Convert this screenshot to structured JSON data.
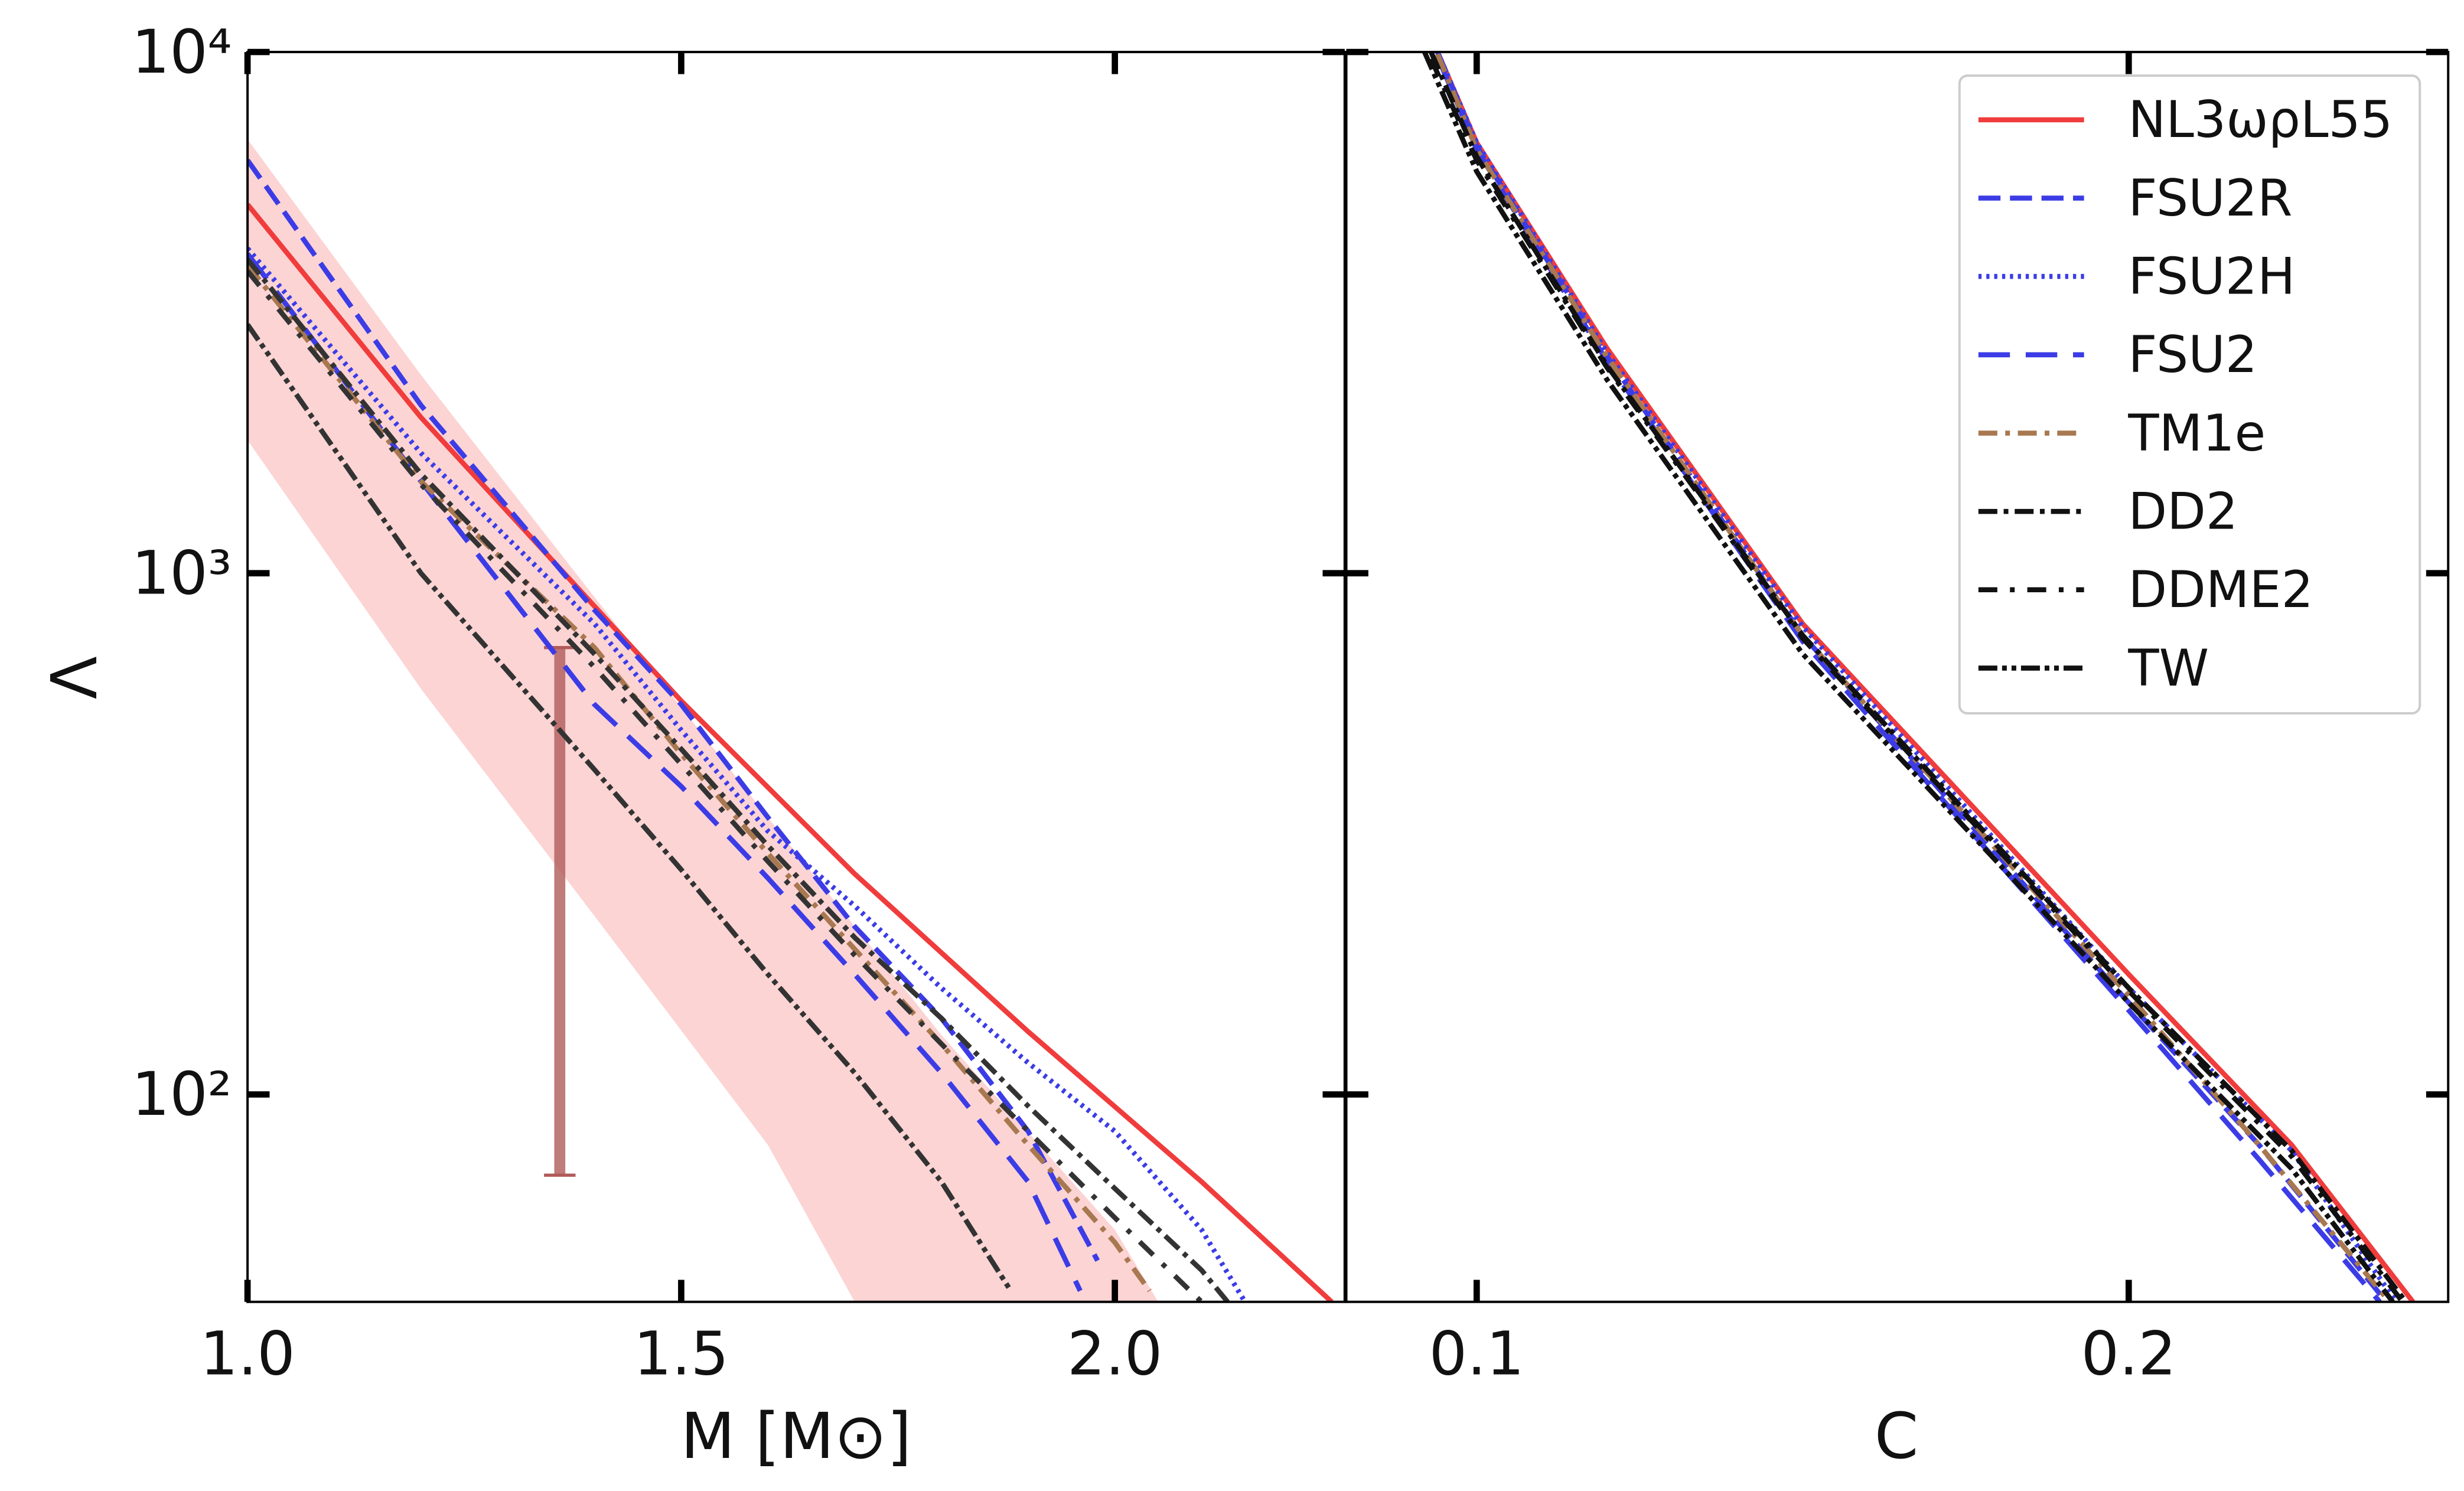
{
  "chart_data": [
    {
      "type": "line",
      "xlabel": "M [M⊙]",
      "ylabel": "Λ",
      "log_y": true,
      "xlim": [
        1.0,
        2.265
      ],
      "ylim": [
        40,
        10000
      ],
      "xticks": [
        {
          "value": 1.0,
          "label": "1.0"
        },
        1.5,
        {
          "value": 2.0,
          "label": "2.0"
        }
      ],
      "yticks": [
        {
          "value": 100,
          "label": "10²"
        },
        {
          "value": 1000,
          "label": "10³"
        },
        {
          "value": 10000,
          "label": "10⁴"
        }
      ],
      "band": {
        "color": "#fcd4d4",
        "upper": {
          "x": [
            1.0,
            1.2,
            1.4,
            1.6,
            1.8,
            2.0,
            2.05
          ],
          "values": [
            6800,
            2400,
            900,
            340,
            130,
            55,
            40
          ]
        },
        "lower": {
          "x": [
            1.0,
            1.2,
            1.4,
            1.6,
            1.7
          ],
          "values": [
            1800,
            600,
            220,
            80,
            40
          ]
        }
      },
      "errorbar": {
        "x": 1.36,
        "low": 70,
        "high": 720,
        "color": "#b05a5a"
      },
      "series": [
        {
          "color": "#f03c3c",
          "dash": "none",
          "x": [
            1.0,
            1.2,
            1.35,
            1.5,
            1.7,
            1.9,
            2.1,
            2.25
          ],
          "values": [
            5100,
            1990,
            1065,
            569,
            265,
            132,
            68,
            40
          ]
        },
        {
          "color": "#3c3ce6",
          "dash": "14,6",
          "x": [
            1.0,
            1.2,
            1.4,
            1.5,
            1.6,
            1.7,
            1.8,
            1.9,
            1.98
          ],
          "values": [
            6200,
            2100,
            850,
            560,
            340,
            210,
            140,
            85,
            48
          ]
        },
        {
          "color": "#3c3ce6",
          "dash": "2,3",
          "x": [
            1.0,
            1.2,
            1.4,
            1.5,
            1.6,
            1.7,
            1.8,
            1.9,
            2.0,
            2.1,
            2.15
          ],
          "values": [
            4200,
            1700,
            800,
            500,
            320,
            230,
            160,
            115,
            85,
            55,
            40
          ]
        },
        {
          "color": "#3c3ce6",
          "dash": "20,10",
          "x": [
            1.0,
            1.2,
            1.4,
            1.5,
            1.6,
            1.7,
            1.8,
            1.9,
            1.96
          ],
          "values": [
            4100,
            1500,
            560,
            390,
            260,
            170,
            110,
            68,
            42
          ]
        },
        {
          "color": "#a87850",
          "dash": "12,5,3,5",
          "x": [
            1.0,
            1.2,
            1.4,
            1.5,
            1.6,
            1.7,
            1.8,
            1.9,
            2.0,
            2.04
          ],
          "values": [
            3900,
            1500,
            720,
            450,
            290,
            190,
            125,
            80,
            52,
            42
          ]
        },
        {
          "color": "#333333",
          "dash": "12,4,3,4",
          "x": [
            1.0,
            1.2,
            1.4,
            1.5,
            1.6,
            1.7,
            1.8,
            1.9,
            2.0,
            2.1,
            2.13
          ],
          "values": [
            4000,
            1550,
            700,
            460,
            300,
            200,
            140,
            95,
            66,
            46,
            40
          ]
        },
        {
          "color": "#333333",
          "dash": "12,8,3,8",
          "x": [
            1.0,
            1.2,
            1.4,
            1.5,
            1.6,
            1.7,
            1.8,
            1.9,
            2.0,
            2.1
          ],
          "values": [
            3800,
            1480,
            660,
            430,
            280,
            185,
            125,
            85,
            58,
            40
          ]
        },
        {
          "color": "#333333",
          "dash": "12,3,3,3,3,3",
          "x": [
            1.0,
            1.2,
            1.4,
            1.5,
            1.6,
            1.7,
            1.8,
            1.88
          ],
          "values": [
            3000,
            1000,
            420,
            270,
            170,
            110,
            68,
            42
          ]
        }
      ]
    },
    {
      "type": "line",
      "xlabel": "C",
      "log_y": true,
      "legend": "upper right",
      "xlim": [
        0.08,
        0.249
      ],
      "ylim": [
        40,
        10000
      ],
      "xticks": [
        0.1,
        0.2
      ],
      "yticks": [
        100,
        1000,
        10000
      ],
      "series": [
        {
          "name": "NL3ωρL55",
          "color": "#f03c3c",
          "dash": "none",
          "x": [
            0.094,
            0.1,
            0.12,
            0.15,
            0.2,
            0.225,
            0.2436
          ],
          "values": [
            10000,
            6700,
            2700,
            800,
            170,
            80,
            40
          ]
        },
        {
          "name": "FSU2R",
          "color": "#3c3ce6",
          "dash": "14,6",
          "x": [
            0.094,
            0.1,
            0.12,
            0.15,
            0.2,
            0.22,
            0.2395
          ],
          "values": [
            10000,
            6600,
            2600,
            760,
            150,
            80,
            40
          ]
        },
        {
          "name": "FSU2H",
          "color": "#3c3ce6",
          "dash": "2,3",
          "x": [
            0.094,
            0.1,
            0.12,
            0.15,
            0.2,
            0.225,
            0.241
          ],
          "values": [
            10000,
            6700,
            2650,
            790,
            160,
            78,
            40
          ]
        },
        {
          "name": "FSU2",
          "color": "#3c3ce6",
          "dash": "20,10",
          "x": [
            0.094,
            0.1,
            0.12,
            0.15,
            0.2,
            0.22,
            0.2385
          ],
          "values": [
            9800,
            6500,
            2550,
            740,
            145,
            75,
            40
          ]
        },
        {
          "name": "TM1e",
          "color": "#a87850",
          "dash": "12,5,3,5",
          "x": [
            0.094,
            0.1,
            0.12,
            0.15,
            0.2,
            0.22,
            0.24
          ],
          "values": [
            9900,
            6500,
            2600,
            760,
            155,
            80,
            40
          ]
        },
        {
          "name": "DD2",
          "color": "#111111",
          "dash": "12,4,3,4",
          "x": [
            0.093,
            0.1,
            0.12,
            0.15,
            0.2,
            0.225,
            0.2425
          ],
          "values": [
            10000,
            6300,
            2500,
            760,
            160,
            78,
            40
          ]
        },
        {
          "name": "DDME2",
          "color": "#111111",
          "dash": "12,8,3,8",
          "x": [
            0.093,
            0.1,
            0.12,
            0.15,
            0.2,
            0.225,
            0.242
          ],
          "values": [
            9700,
            6200,
            2480,
            750,
            158,
            76,
            40
          ]
        },
        {
          "name": "TW",
          "color": "#111111",
          "dash": "12,3,3,3,3,3",
          "x": [
            0.092,
            0.1,
            0.12,
            0.15,
            0.2,
            0.225,
            0.2405
          ],
          "values": [
            10000,
            5900,
            2350,
            700,
            150,
            72,
            40
          ]
        }
      ]
    }
  ]
}
